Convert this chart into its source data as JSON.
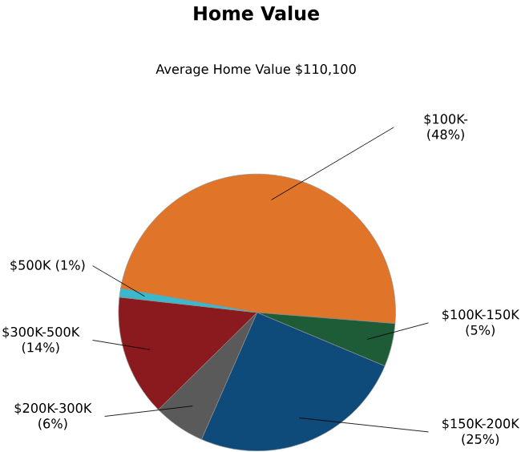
{
  "chart_data": {
    "type": "pie",
    "title": "Home Value",
    "subtitle": "Average Home Value  $110,100",
    "categories": [
      "$100K-",
      "$100K-150K",
      "$150K-200K",
      "$200K-300K",
      "$300K-500K",
      "$500K"
    ],
    "values": [
      48,
      5,
      25,
      6,
      14,
      1
    ],
    "value_labels": [
      "(48%)",
      "(5%)",
      "(25%)",
      "(6%)",
      "(14%)",
      "(1%)"
    ],
    "colors": [
      "#e07428",
      "#1e5c38",
      "#0e4a7a",
      "#5a5a5a",
      "#8b1a1e",
      "#3ab8cc"
    ]
  }
}
